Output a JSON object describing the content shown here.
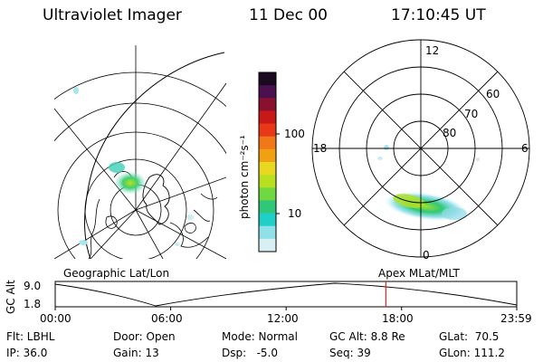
{
  "header": {
    "instrument": "Ultraviolet Imager",
    "date": "11 Dec 00",
    "time": "17:10:45 UT"
  },
  "colorbar": {
    "unit_label": "photon cm⁻²s⁻¹",
    "ticks": [
      "100",
      "10"
    ],
    "colors": [
      "#1a0a20",
      "#4a1050",
      "#8a1030",
      "#c81818",
      "#e83818",
      "#f07818",
      "#f0a010",
      "#e8d820",
      "#b8e020",
      "#70d840",
      "#30c878",
      "#20d0c8",
      "#90e0e8",
      "#d8f0f4"
    ]
  },
  "geo_panel": {
    "label": "Geographic Lat/Lon"
  },
  "polar_panel": {
    "label": "Apex MLat/MLT",
    "mlt_labels": {
      "top": "12",
      "right": "6",
      "bottom": "0",
      "left": "18"
    },
    "mlat_labels": [
      "60",
      "70",
      "80"
    ]
  },
  "altitude_plot": {
    "axis_title": "GC Alt",
    "y_ticks": [
      "9.0",
      "1.8"
    ],
    "x_ticks": [
      "00:00",
      "06:00",
      "12:00",
      "18:00",
      "23:59"
    ],
    "marker_color": "#e02020"
  },
  "info": {
    "filter": "Flt: LBHL",
    "door": "Door: Open",
    "mode": "Mode: Normal",
    "gc_alt": "GC Alt: 8.8 Re",
    "glat": "GLat:  70.5",
    "ip": "IP: 36.0",
    "gain": "Gain: 13",
    "dsp": "Dsp:   -5.0",
    "seq": "Seq: 39",
    "glon": "GLon: 111.2"
  }
}
